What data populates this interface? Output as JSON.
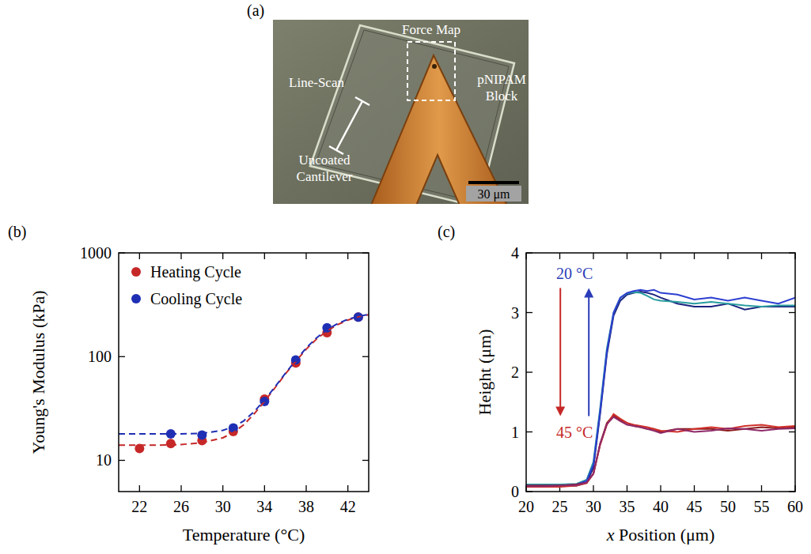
{
  "image_panel": {
    "label": "(a)",
    "texts": [
      "Force Map",
      "Line-Scan",
      "Uncoated Cantilever",
      "pNIPAM Block"
    ],
    "scale_bar": "30 μm"
  },
  "chart_data": [
    {
      "type": "scatter",
      "label": "(b)",
      "x_label": "Temperature (°C)",
      "y_label": "Young's Modulus (kPa)",
      "log": "y",
      "grid": false,
      "legend": "upper left",
      "xlim": [
        20,
        44
      ],
      "xticks": [
        22,
        26,
        30,
        34,
        38,
        42
      ],
      "ylim": [
        5,
        1000
      ],
      "yticks": [
        10,
        100,
        1000
      ],
      "series": [
        {
          "name": "Heating Cycle",
          "type": "scatter",
          "marker": "circle",
          "color": "#c62828",
          "x": [
            22,
            25,
            28,
            31,
            34,
            37,
            40,
            43
          ],
          "values": [
            13,
            14.5,
            15.5,
            19,
            39,
            87,
            170,
            240
          ]
        },
        {
          "name": "Cooling Cycle",
          "type": "scatter",
          "marker": "circle",
          "color": "#1f2fb4",
          "x": [
            25,
            28,
            31,
            34,
            37,
            40,
            43
          ],
          "values": [
            18,
            17.5,
            20.5,
            37,
            93,
            190,
            240
          ]
        },
        {
          "type": "line",
          "line_style": "dashed",
          "color": "#c62828",
          "x": [
            20,
            22,
            24,
            26,
            28,
            30,
            31,
            32,
            33,
            34,
            35,
            36,
            37,
            38,
            39,
            40,
            41,
            42,
            43,
            44
          ],
          "values": [
            14,
            14,
            14,
            14.2,
            14.8,
            16.5,
            18.5,
            22,
            28,
            37,
            50,
            68,
            90,
            118,
            148,
            177,
            203,
            225,
            242,
            254
          ]
        },
        {
          "type": "line",
          "line_style": "dashed",
          "color": "#1f2fb4",
          "x": [
            20,
            22,
            24,
            26,
            28,
            30,
            31,
            32,
            33,
            34,
            35,
            36,
            37,
            38,
            39,
            40,
            41,
            42,
            43,
            44
          ],
          "values": [
            18,
            18,
            18,
            18,
            18.2,
            19.5,
            21,
            24,
            29.5,
            38,
            51,
            69,
            92,
            121,
            152,
            182,
            208,
            229,
            244,
            255
          ]
        }
      ]
    },
    {
      "type": "line",
      "label": "(c)",
      "x_label": "x Position (μm)",
      "y_label": "Height (μm)",
      "grid": false,
      "xlim": [
        20,
        60
      ],
      "xticks": [
        20,
        25,
        30,
        35,
        40,
        45,
        50,
        55,
        60
      ],
      "ylim": [
        0,
        4
      ],
      "yticks": [
        0,
        1,
        2,
        3,
        4
      ],
      "x": [
        20,
        22.5,
        25,
        27.5,
        29,
        30,
        31,
        32,
        33,
        34,
        35,
        36,
        37,
        38,
        39,
        40,
        42.5,
        45,
        47.5,
        50,
        52.5,
        55,
        57.5,
        60
      ],
      "series": [
        {
          "color": "#1a237e",
          "line_style": "solid",
          "values": [
            0.08,
            0.08,
            0.09,
            0.1,
            0.15,
            0.4,
            1.3,
            2.3,
            2.95,
            3.2,
            3.3,
            3.33,
            3.35,
            3.33,
            3.3,
            3.25,
            3.15,
            3.1,
            3.1,
            3.15,
            3.05,
            3.1,
            3.1,
            3.1
          ]
        },
        {
          "color": "#2a9d9f",
          "line_style": "solid",
          "values": [
            0.12,
            0.12,
            0.12,
            0.13,
            0.2,
            0.5,
            1.4,
            2.4,
            3.0,
            3.25,
            3.32,
            3.34,
            3.33,
            3.28,
            3.22,
            3.2,
            3.18,
            3.15,
            3.18,
            3.15,
            3.12,
            3.1,
            3.12,
            3.12
          ]
        },
        {
          "color": "#2d3fd0",
          "line_style": "solid",
          "values": [
            0.1,
            0.1,
            0.1,
            0.12,
            0.18,
            0.45,
            1.35,
            2.35,
            3.0,
            3.25,
            3.33,
            3.36,
            3.38,
            3.36,
            3.38,
            3.33,
            3.3,
            3.22,
            3.25,
            3.2,
            3.25,
            3.2,
            3.15,
            3.25
          ]
        },
        {
          "color": "#8b1a1a",
          "line_style": "solid",
          "values": [
            0.1,
            0.1,
            0.1,
            0.12,
            0.15,
            0.3,
            0.8,
            1.15,
            1.28,
            1.2,
            1.15,
            1.1,
            1.08,
            1.05,
            1.05,
            1.0,
            1.05,
            1.05,
            1.05,
            1.02,
            1.05,
            1.08,
            1.06,
            1.08
          ]
        },
        {
          "color": "#d0302a",
          "line_style": "solid",
          "values": [
            0.08,
            0.08,
            0.08,
            0.1,
            0.14,
            0.3,
            0.78,
            1.12,
            1.3,
            1.22,
            1.15,
            1.12,
            1.1,
            1.08,
            1.05,
            1.02,
            1.0,
            1.05,
            1.08,
            1.05,
            1.1,
            1.12,
            1.08,
            1.1
          ]
        },
        {
          "color": "#8e2a6a",
          "line_style": "solid",
          "values": [
            0.09,
            0.09,
            0.1,
            0.11,
            0.15,
            0.3,
            0.8,
            1.13,
            1.25,
            1.18,
            1.12,
            1.1,
            1.08,
            1.05,
            1.02,
            0.98,
            1.05,
            1.0,
            1.02,
            1.06,
            1.05,
            1.02,
            1.05,
            1.06
          ]
        }
      ],
      "annotations": [
        {
          "text": "20 °C",
          "x": 27.2,
          "y": 3.65,
          "color": "#2a3cb8"
        },
        {
          "text": "45 °C",
          "x": 27.2,
          "y": 1.0,
          "color": "#c62828"
        }
      ]
    }
  ]
}
